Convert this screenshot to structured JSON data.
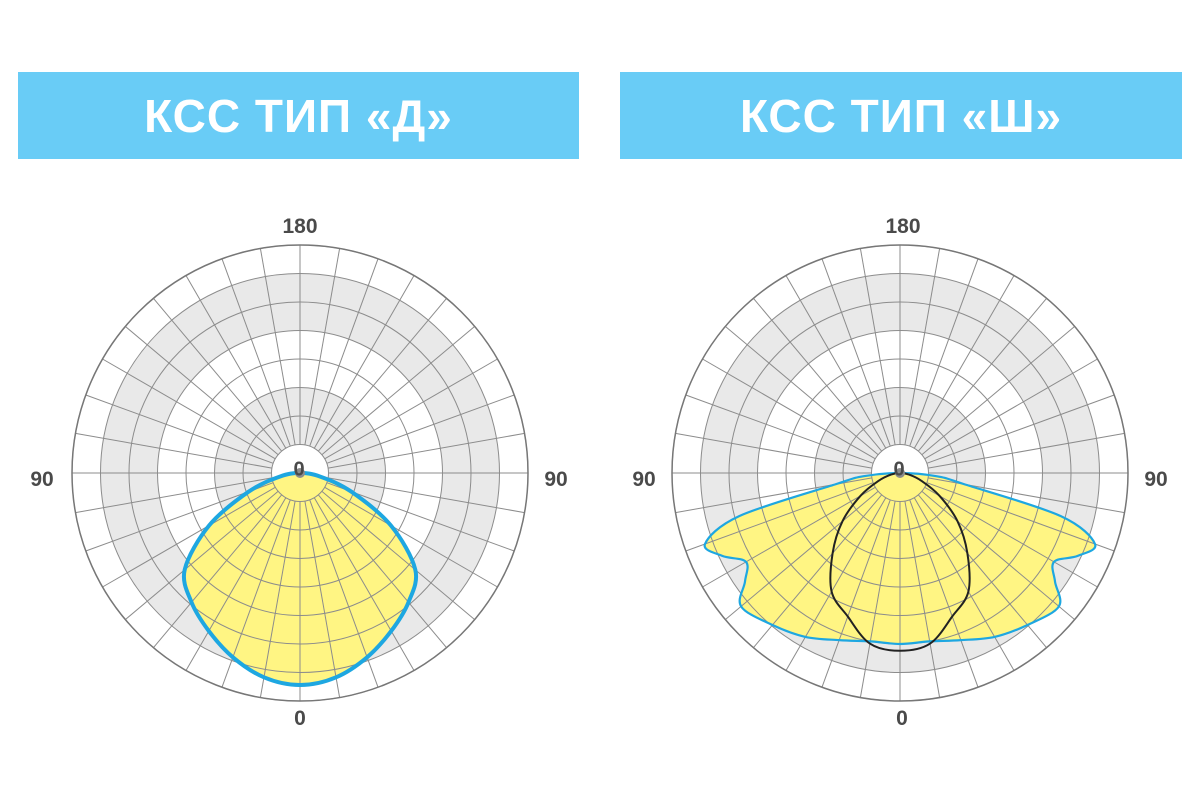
{
  "panels": [
    {
      "title": "КСС ТИП «Д»",
      "labels": {
        "top": "180",
        "left": "90",
        "right": "90",
        "bottom": "0",
        "center": "0"
      },
      "chart_data": {
        "type": "polar",
        "angle_labels": [
          "180",
          "90",
          "90",
          "0"
        ],
        "series": [
          {
            "style": "filled-outline",
            "angles_deg": [
              0,
              10,
              20,
              30,
              40,
              50,
              60,
              70,
              80,
              90
            ],
            "r_fraction": [
              0.93,
              0.91,
              0.86,
              0.8,
              0.74,
              0.66,
              0.46,
              0.24,
              0.09,
              0.0
            ]
          }
        ]
      },
      "colors": {
        "fill": "#fff583",
        "outline": "#1ea7e1",
        "ring_shade": "#e9e9e9",
        "grid": "#8c8c8c"
      }
    },
    {
      "title": "КСС ТИП «Ш»",
      "labels": {
        "top": "180",
        "left": "90",
        "right": "90",
        "bottom": "0",
        "center": "0"
      },
      "chart_data": {
        "type": "polar",
        "angle_labels": [
          "180",
          "90",
          "90",
          "0"
        ],
        "series": [
          {
            "style": "filled-outline",
            "angles_deg": [
              0,
              10,
              20,
              30,
              40,
              50,
              55,
              60,
              65,
              70,
              75,
              80,
              85,
              90
            ],
            "r_fraction": [
              0.75,
              0.75,
              0.78,
              0.83,
              0.87,
              0.91,
              0.83,
              0.78,
              0.86,
              0.91,
              0.73,
              0.29,
              0.16,
              0.0
            ]
          },
          {
            "style": "line",
            "angles_deg": [
              0,
              10,
              20,
              30,
              40,
              50,
              60,
              70,
              80,
              90
            ],
            "r_fraction": [
              0.78,
              0.76,
              0.67,
              0.6,
              0.46,
              0.33,
              0.2,
              0.1,
              0.04,
              0.0
            ]
          }
        ]
      },
      "colors": {
        "fill": "#fff583",
        "outline": "#1ea7e1",
        "line": "#222222",
        "ring_shade": "#e9e9e9",
        "grid": "#8c8c8c"
      }
    }
  ]
}
